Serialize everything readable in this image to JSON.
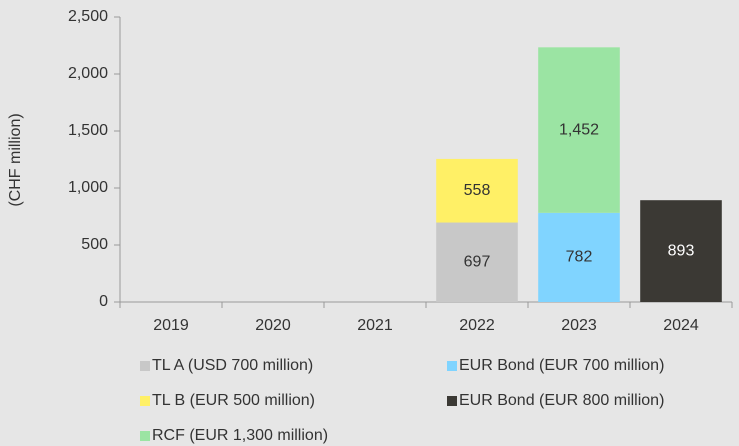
{
  "chart_data": {
    "type": "stacked_bar",
    "y_label": "(CHF million)",
    "categories": [
      "2019",
      "2020",
      "2021",
      "2022",
      "2023",
      "2024"
    ],
    "series": [
      {
        "name": "TL A (USD 700 million)",
        "color": "#c8c8c8",
        "values": [
          null,
          null,
          null,
          697,
          null,
          null
        ]
      },
      {
        "name": "EUR Bond (EUR 700 million)",
        "color": "#80d4ff",
        "values": [
          null,
          null,
          null,
          null,
          782,
          null
        ]
      },
      {
        "name": "TL B (EUR 500 million)",
        "color": "#fff066",
        "values": [
          null,
          null,
          null,
          558,
          null,
          null
        ]
      },
      {
        "name": "EUR Bond (EUR 800 million)",
        "color": "#3b3934",
        "values": [
          null,
          null,
          null,
          null,
          null,
          893
        ]
      },
      {
        "name": "RCF (EUR 1,300 million)",
        "color": "#9be4a3",
        "values": [
          null,
          null,
          null,
          null,
          1452,
          null
        ],
        "value_labels": [
          null,
          null,
          null,
          null,
          "1,452",
          null
        ]
      }
    ],
    "ylim": [
      0,
      2500
    ],
    "yticks": [
      0,
      500,
      {
        "value": 1000,
        "label": "1,000"
      },
      {
        "value": 1500,
        "label": "1,500"
      },
      {
        "value": 2000,
        "label": "2,000"
      },
      {
        "value": 2500,
        "label": "2,500"
      }
    ]
  }
}
